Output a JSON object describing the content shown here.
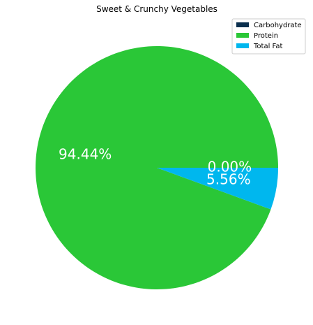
{
  "chart_data": {
    "type": "pie",
    "title": "Sweet & Crunchy Vegetables",
    "legend_position": "top-right",
    "slices": [
      {
        "name": "Carbohydrate",
        "value": 0.0,
        "label": "0.00%",
        "color": "#0b2f4e"
      },
      {
        "name": "Protein",
        "value": 94.44,
        "label": "94.44%",
        "color": "#2ac737"
      },
      {
        "name": "Total Fat",
        "value": 5.56,
        "label": "5.56%",
        "color": "#00b7ee"
      }
    ]
  }
}
